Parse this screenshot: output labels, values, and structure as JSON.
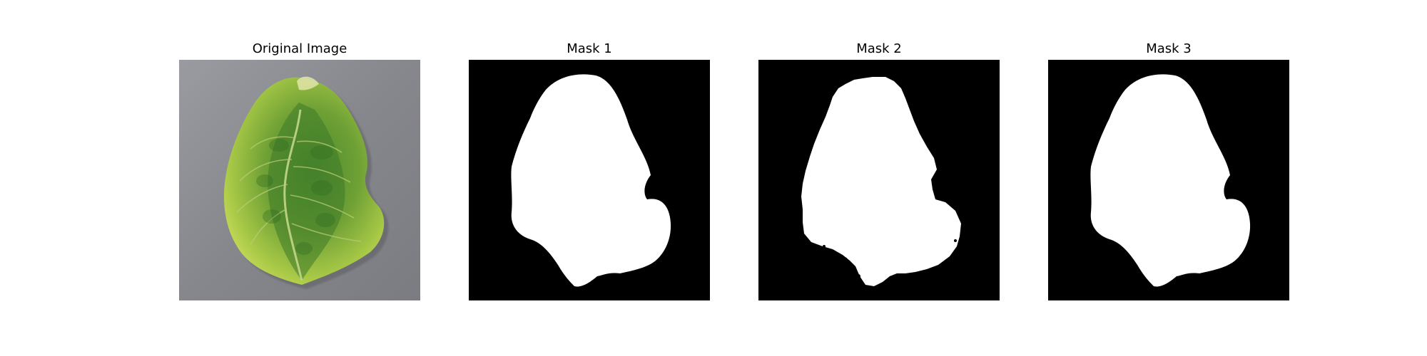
{
  "panels": [
    {
      "title": "Original Image",
      "kind": "photo"
    },
    {
      "title": "Mask 1",
      "kind": "mask",
      "variant": "smooth"
    },
    {
      "title": "Mask 2",
      "kind": "mask",
      "variant": "rough"
    },
    {
      "title": "Mask 3",
      "kind": "mask",
      "variant": "smooth"
    }
  ],
  "colors": {
    "background": "#ffffff",
    "mask_background": "#000000",
    "mask_foreground": "#ffffff",
    "leaf_dark": "#3f7f2a",
    "leaf_light": "#c9dd58",
    "surface": "#8a8b8f"
  }
}
